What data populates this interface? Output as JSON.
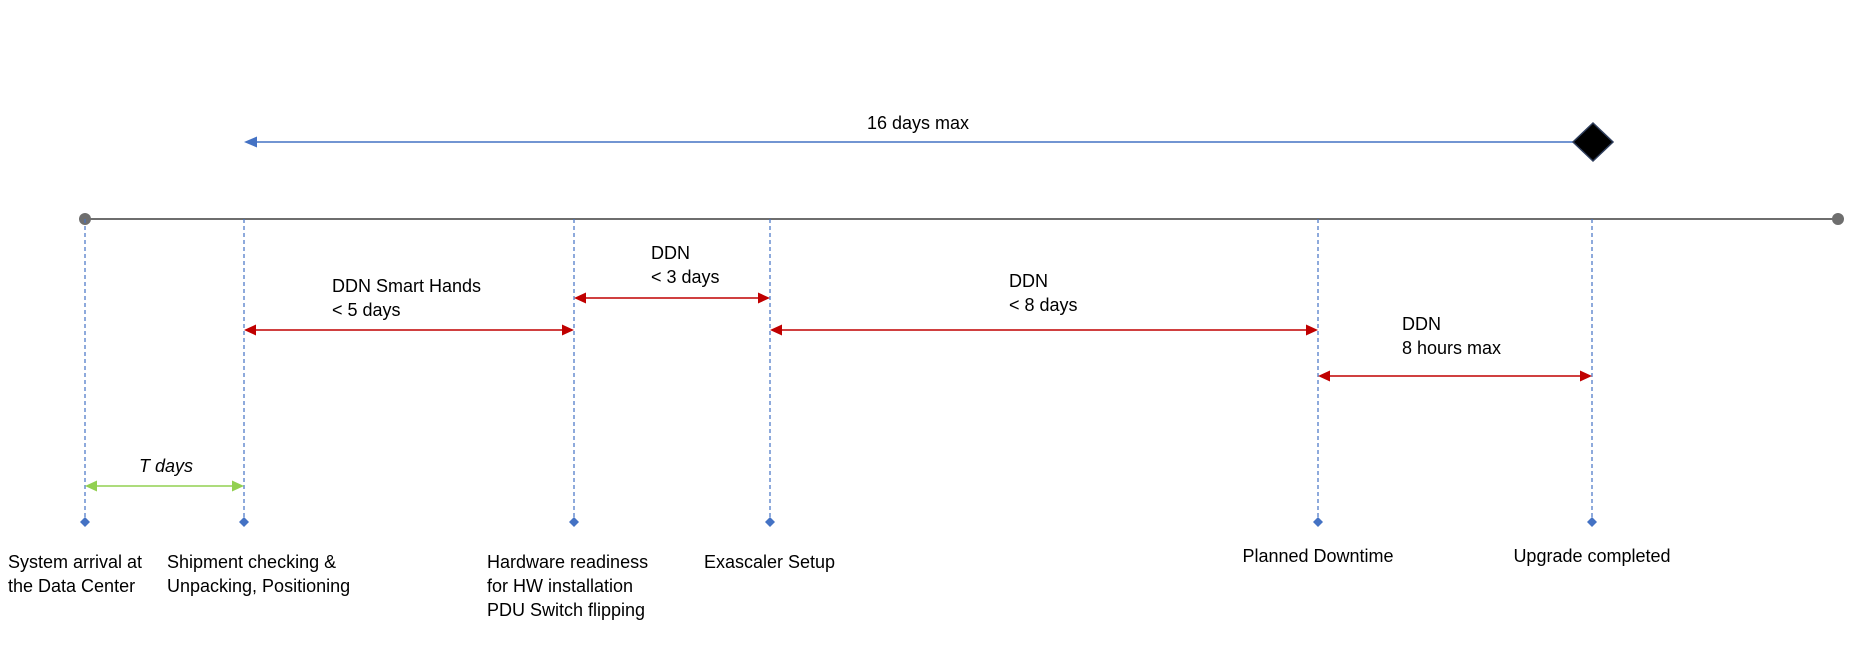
{
  "overall": {
    "label": "16 days max",
    "color": "#4472C4",
    "milestone_color": "#000000"
  },
  "timeline_color": "#6E6E6E",
  "guide_color": "#4472C4",
  "milestones": [
    {
      "id": "arrival",
      "lines": [
        "System arrival at",
        "the Data Center"
      ]
    },
    {
      "id": "shipment",
      "lines": [
        "Shipment checking &",
        "Unpacking, Positioning"
      ]
    },
    {
      "id": "hardware",
      "lines": [
        "Hardware readiness",
        "for HW installation",
        "PDU Switch flipping"
      ]
    },
    {
      "id": "exascaler",
      "lines": [
        "Exascaler Setup"
      ]
    },
    {
      "id": "downtime",
      "lines": [
        "Planned Downtime"
      ]
    },
    {
      "id": "upgrade",
      "lines": [
        "Upgrade completed"
      ]
    }
  ],
  "spans": [
    {
      "id": "t-days",
      "from": "arrival",
      "to": "shipment",
      "lines": [
        "T days"
      ],
      "color": "#92D050",
      "italic": true
    },
    {
      "id": "smart-hands",
      "from": "shipment",
      "to": "hardware",
      "lines": [
        "DDN Smart Hands",
        "< 5 days"
      ],
      "color": "#C00000"
    },
    {
      "id": "ddn-3",
      "from": "hardware",
      "to": "exascaler",
      "lines": [
        "DDN",
        "< 3 days"
      ],
      "color": "#C00000"
    },
    {
      "id": "ddn-8",
      "from": "exascaler",
      "to": "downtime",
      "lines": [
        "DDN",
        "< 8 days"
      ],
      "color": "#C00000"
    },
    {
      "id": "ddn-8h",
      "from": "downtime",
      "to": "upgrade",
      "lines": [
        "DDN",
        "8 hours max"
      ],
      "color": "#C00000"
    }
  ]
}
